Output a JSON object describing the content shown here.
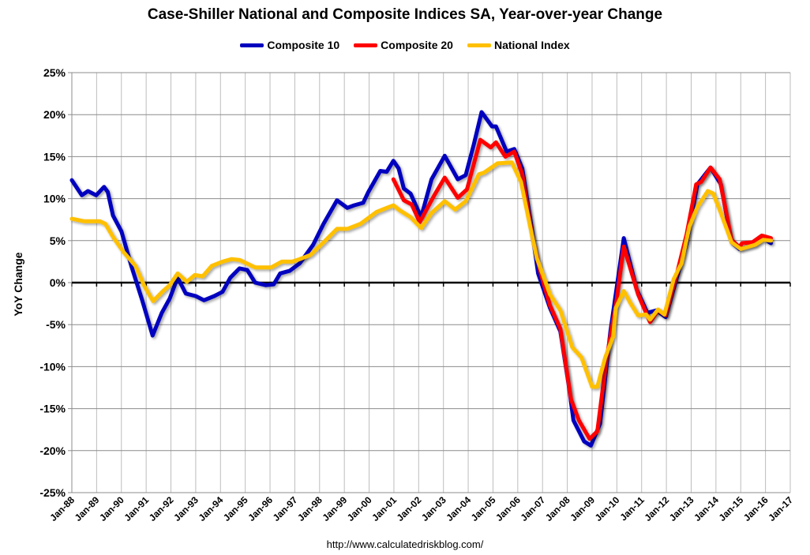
{
  "chart_data": {
    "type": "line",
    "title": "Case-Shiller National and Composite Indices SA, Year-over-year Change",
    "ylabel": "YoY Change",
    "xlabel": "",
    "ylim": [
      -25,
      25
    ],
    "xlim": [
      "Jan-88",
      "Jan-17"
    ],
    "grid": true,
    "legend_position": "top",
    "y_ticks": [
      "25%",
      "20%",
      "15%",
      "10%",
      "5%",
      "0%",
      "-5%",
      "-10%",
      "-15%",
      "-20%",
      "-25%"
    ],
    "x_ticks": [
      "Jan-88",
      "Jan-89",
      "Jan-90",
      "Jan-91",
      "Jan-92",
      "Jan-93",
      "Jan-94",
      "Jan-95",
      "Jan-96",
      "Jan-97",
      "Jan-98",
      "Jan-99",
      "Jan-00",
      "Jan-01",
      "Jan-02",
      "Jan-03",
      "Jan-04",
      "Jan-05",
      "Jan-06",
      "Jan-07",
      "Jan-08",
      "Jan-09",
      "Jan-10",
      "Jan-11",
      "Jan-12",
      "Jan-13",
      "Jan-14",
      "Jan-15",
      "Jan-16",
      "Jan-17"
    ],
    "series": [
      {
        "name": "Composite 10",
        "color": "#0000BF",
        "points": [
          [
            1988.0,
            12.2
          ],
          [
            1988.4,
            10.4
          ],
          [
            1988.65,
            10.9
          ],
          [
            1988.98,
            10.4
          ],
          [
            1989.3,
            11.4
          ],
          [
            1989.45,
            10.8
          ],
          [
            1989.66,
            8.0
          ],
          [
            1990.0,
            6.1
          ],
          [
            1990.4,
            2.0
          ],
          [
            1990.84,
            -2.1
          ],
          [
            1991.26,
            -6.3
          ],
          [
            1991.63,
            -3.6
          ],
          [
            1991.95,
            -1.9
          ],
          [
            1992.27,
            0.6
          ],
          [
            1992.6,
            -1.3
          ],
          [
            1993.0,
            -1.6
          ],
          [
            1993.33,
            -2.1
          ],
          [
            1993.75,
            -1.6
          ],
          [
            1994.08,
            -1.1
          ],
          [
            1994.4,
            0.6
          ],
          [
            1994.77,
            1.7
          ],
          [
            1995.08,
            1.5
          ],
          [
            1995.4,
            0.0
          ],
          [
            1995.83,
            -0.3
          ],
          [
            1996.15,
            -0.2
          ],
          [
            1996.41,
            1.1
          ],
          [
            1996.79,
            1.4
          ],
          [
            1997.2,
            2.3
          ],
          [
            1997.74,
            4.5
          ],
          [
            1998.16,
            7.0
          ],
          [
            1998.7,
            9.8
          ],
          [
            1999.12,
            8.9
          ],
          [
            1999.39,
            9.2
          ],
          [
            1999.76,
            9.5
          ],
          [
            1999.97,
            10.8
          ],
          [
            2000.45,
            13.3
          ],
          [
            2000.71,
            13.2
          ],
          [
            2000.98,
            14.5
          ],
          [
            2001.19,
            13.6
          ],
          [
            2001.4,
            11.2
          ],
          [
            2001.67,
            10.6
          ],
          [
            2002.1,
            7.8
          ],
          [
            2002.52,
            12.3
          ],
          [
            2003.05,
            15.1
          ],
          [
            2003.58,
            12.3
          ],
          [
            2003.9,
            12.8
          ],
          [
            2004.22,
            16.4
          ],
          [
            2004.54,
            20.3
          ],
          [
            2004.96,
            18.6
          ],
          [
            2005.12,
            18.6
          ],
          [
            2005.55,
            15.6
          ],
          [
            2005.86,
            15.9
          ],
          [
            2006.18,
            13.6
          ],
          [
            2006.55,
            6.7
          ],
          [
            2006.82,
            1.1
          ],
          [
            2007.3,
            -3.0
          ],
          [
            2007.72,
            -5.8
          ],
          [
            2008.05,
            -12.1
          ],
          [
            2008.25,
            -16.4
          ],
          [
            2008.68,
            -18.9
          ],
          [
            2008.95,
            -19.4
          ],
          [
            2009.32,
            -16.8
          ],
          [
            2009.74,
            -5.8
          ],
          [
            2010.28,
            5.3
          ],
          [
            2010.8,
            -0.8
          ],
          [
            2011.23,
            -3.6
          ],
          [
            2011.6,
            -3.3
          ],
          [
            2011.97,
            -4.1
          ],
          [
            2012.4,
            0.4
          ],
          [
            2012.82,
            4.8
          ],
          [
            2013.25,
            11.7
          ],
          [
            2013.78,
            13.7
          ],
          [
            2014.2,
            11.7
          ],
          [
            2014.63,
            4.8
          ],
          [
            2014.95,
            4.0
          ],
          [
            2015.58,
            4.5
          ],
          [
            2015.9,
            5.3
          ],
          [
            2016.22,
            4.7
          ]
        ]
      },
      {
        "name": "Composite 20",
        "color": "#FF0000",
        "points": [
          [
            2000.98,
            12.3
          ],
          [
            2001.4,
            9.8
          ],
          [
            2001.72,
            9.3
          ],
          [
            2002.04,
            7.2
          ],
          [
            2002.63,
            10.4
          ],
          [
            2003.05,
            12.5
          ],
          [
            2003.58,
            10.1
          ],
          [
            2003.95,
            11.1
          ],
          [
            2004.49,
            17.0
          ],
          [
            2004.91,
            16.1
          ],
          [
            2005.12,
            16.7
          ],
          [
            2005.5,
            15.0
          ],
          [
            2005.86,
            15.6
          ],
          [
            2006.18,
            12.9
          ],
          [
            2006.61,
            5.1
          ],
          [
            2006.93,
            1.1
          ],
          [
            2007.3,
            -2.7
          ],
          [
            2007.72,
            -5.5
          ],
          [
            2008.15,
            -13.9
          ],
          [
            2008.47,
            -16.4
          ],
          [
            2008.9,
            -18.6
          ],
          [
            2009.21,
            -17.7
          ],
          [
            2009.59,
            -8.9
          ],
          [
            2009.96,
            -2.7
          ],
          [
            2010.28,
            4.3
          ],
          [
            2010.86,
            -1.4
          ],
          [
            2011.34,
            -4.7
          ],
          [
            2011.66,
            -3.3
          ],
          [
            2011.97,
            -3.9
          ],
          [
            2012.4,
            0.8
          ],
          [
            2012.82,
            5.8
          ],
          [
            2013.2,
            11.7
          ],
          [
            2013.41,
            12.0
          ],
          [
            2013.78,
            13.7
          ],
          [
            2014.15,
            12.3
          ],
          [
            2014.63,
            5.1
          ],
          [
            2014.95,
            4.2
          ],
          [
            2015.05,
            4.7
          ],
          [
            2015.47,
            4.8
          ],
          [
            2015.85,
            5.6
          ],
          [
            2016.22,
            5.3
          ]
        ]
      },
      {
        "name": "National Index",
        "color": "#FFC000",
        "points": [
          [
            1988.0,
            7.6
          ],
          [
            1988.5,
            7.3
          ],
          [
            1989.13,
            7.3
          ],
          [
            1989.35,
            7.0
          ],
          [
            1989.67,
            5.4
          ],
          [
            1990.1,
            3.6
          ],
          [
            1990.57,
            2.0
          ],
          [
            1990.94,
            -0.5
          ],
          [
            1991.28,
            -2.2
          ],
          [
            1991.68,
            -1.0
          ],
          [
            1991.95,
            -0.3
          ],
          [
            1992.27,
            1.1
          ],
          [
            1992.64,
            0.1
          ],
          [
            1992.96,
            0.9
          ],
          [
            1993.28,
            0.75
          ],
          [
            1993.65,
            2.0
          ],
          [
            1994.08,
            2.5
          ],
          [
            1994.45,
            2.8
          ],
          [
            1994.77,
            2.7
          ],
          [
            1995.4,
            1.8
          ],
          [
            1996.04,
            1.8
          ],
          [
            1996.47,
            2.5
          ],
          [
            1996.89,
            2.5
          ],
          [
            1997.2,
            2.8
          ],
          [
            1997.63,
            3.3
          ],
          [
            1998.16,
            4.8
          ],
          [
            1998.7,
            6.4
          ],
          [
            1999.12,
            6.4
          ],
          [
            1999.65,
            7.0
          ],
          [
            2000.29,
            8.4
          ],
          [
            2000.71,
            8.9
          ],
          [
            2000.98,
            9.2
          ],
          [
            2001.24,
            8.6
          ],
          [
            2001.67,
            7.8
          ],
          [
            2002.1,
            6.5
          ],
          [
            2002.52,
            8.3
          ],
          [
            2003.05,
            9.7
          ],
          [
            2003.47,
            8.7
          ],
          [
            2003.9,
            9.7
          ],
          [
            2004.43,
            12.9
          ],
          [
            2004.64,
            13.1
          ],
          [
            2005.18,
            14.2
          ],
          [
            2005.76,
            14.3
          ],
          [
            2006.13,
            12.0
          ],
          [
            2006.5,
            6.7
          ],
          [
            2006.77,
            2.9
          ],
          [
            2007.3,
            -1.4
          ],
          [
            2007.72,
            -3.3
          ],
          [
            2008.2,
            -7.7
          ],
          [
            2008.57,
            -8.9
          ],
          [
            2009.0,
            -12.4
          ],
          [
            2009.21,
            -12.4
          ],
          [
            2009.53,
            -8.9
          ],
          [
            2009.85,
            -6.4
          ],
          [
            2009.96,
            -3.0
          ],
          [
            2010.28,
            -1.0
          ],
          [
            2010.54,
            -2.4
          ],
          [
            2010.86,
            -3.9
          ],
          [
            2011.18,
            -3.8
          ],
          [
            2011.34,
            -4.4
          ],
          [
            2011.66,
            -3.2
          ],
          [
            2011.92,
            -3.8
          ],
          [
            2012.29,
            0.4
          ],
          [
            2012.61,
            2.3
          ],
          [
            2012.93,
            6.7
          ],
          [
            2013.25,
            9.0
          ],
          [
            2013.67,
            10.9
          ],
          [
            2013.89,
            10.6
          ],
          [
            2014.2,
            8.3
          ],
          [
            2014.63,
            4.8
          ],
          [
            2015.0,
            4.0
          ],
          [
            2015.58,
            4.5
          ],
          [
            2015.9,
            5.1
          ],
          [
            2016.22,
            5.0
          ]
        ]
      }
    ]
  },
  "footer": "http://www.calculatedriskblog.com/"
}
